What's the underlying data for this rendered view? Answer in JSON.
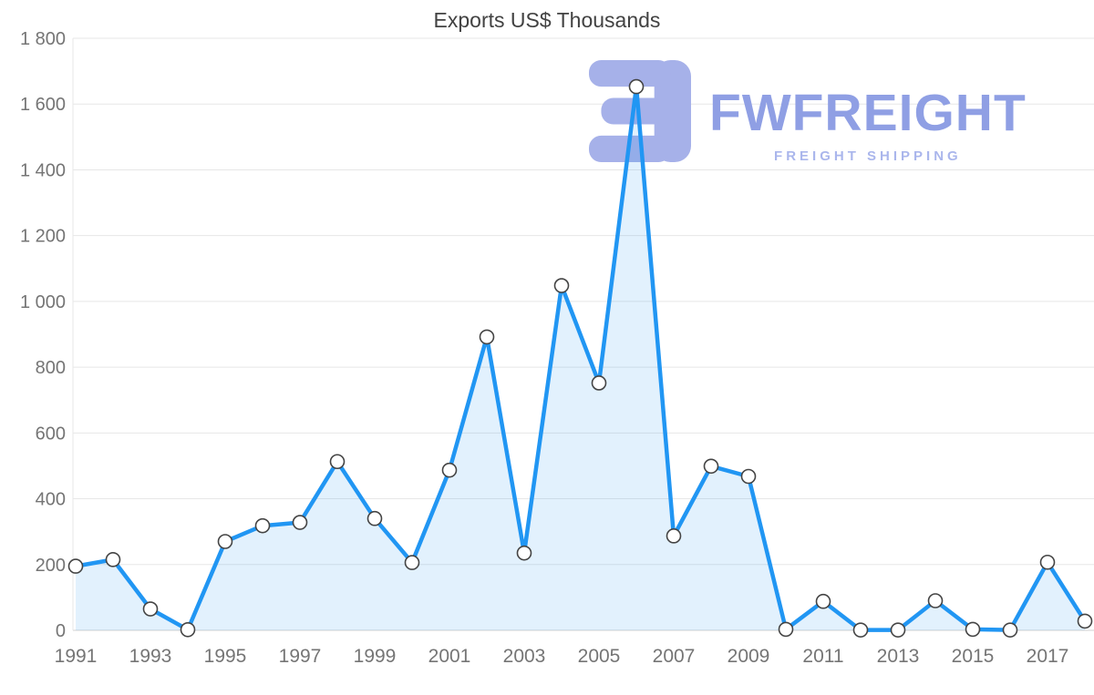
{
  "watermark": {
    "brand": "FWFREIGHT",
    "tagline": "FREIGHT SHIPPING",
    "brand_color": "#8f9fe4",
    "tagline_color": "#aab6ec",
    "logo_color": "#a6b1e9"
  },
  "chart_data": {
    "type": "area",
    "title": "Exports US$ Thousands",
    "xlabel": "",
    "ylabel": "",
    "ylim": [
      0,
      1800
    ],
    "grid": true,
    "legend_position": "none",
    "x": [
      1991,
      1992,
      1993,
      1994,
      1995,
      1996,
      1997,
      1998,
      1999,
      2000,
      2001,
      2002,
      2003,
      2004,
      2005,
      2006,
      2007,
      2008,
      2009,
      2010,
      2011,
      2012,
      2013,
      2014,
      2015,
      2016,
      2017,
      2018
    ],
    "values": [
      195,
      215,
      65,
      2,
      270,
      318,
      328,
      513,
      340,
      206,
      487,
      892,
      235,
      1048,
      752,
      1653,
      287,
      499,
      468,
      3,
      88,
      1,
      1,
      90,
      3,
      1,
      207,
      28
    ],
    "x_tick_labels": [
      "1991",
      "1993",
      "1995",
      "1997",
      "1999",
      "2001",
      "2003",
      "2005",
      "2007",
      "2009",
      "2011",
      "2013",
      "2015",
      "2017"
    ],
    "y_ticks": [
      {
        "value": 0,
        "label": "0"
      },
      {
        "value": 200,
        "label": "200"
      },
      {
        "value": 400,
        "label": "400"
      },
      {
        "value": 600,
        "label": "600"
      },
      {
        "value": 800,
        "label": "800"
      },
      {
        "value": 1000,
        "label": "1 000"
      },
      {
        "value": 1200,
        "label": "1 200"
      },
      {
        "value": 1400,
        "label": "1 400"
      },
      {
        "value": 1600,
        "label": "1 600"
      },
      {
        "value": 1800,
        "label": "1 800"
      }
    ],
    "colors": {
      "line": "#2196f3",
      "fill": "rgba(33,150,243,0.13)",
      "marker_fill": "#ffffff",
      "marker_stroke": "#444444",
      "grid": "#e7e7e7",
      "axis": "#d2d2d2",
      "tick_label": "#757575",
      "title": "#424242"
    }
  }
}
